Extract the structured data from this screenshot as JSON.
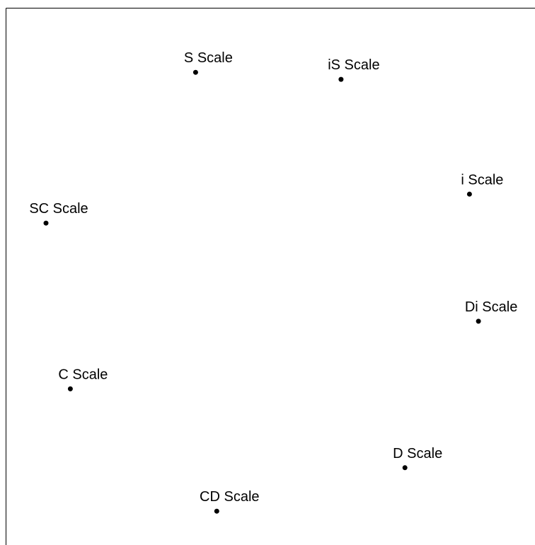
{
  "chart_data": {
    "type": "scatter",
    "title": "",
    "xlabel": "",
    "ylabel": "",
    "grid": false,
    "legend": "none",
    "xlim": [
      0,
      100
    ],
    "ylim": [
      0,
      100
    ],
    "points": [
      {
        "label": "S Scale",
        "x": 35.8,
        "y": 88.1
      },
      {
        "label": "iS Scale",
        "x": 63.3,
        "y": 86.8
      },
      {
        "label": "i Scale",
        "x": 87.6,
        "y": 65.4
      },
      {
        "label": "SC Scale",
        "x": 7.5,
        "y": 60.0
      },
      {
        "label": "Di Scale",
        "x": 89.3,
        "y": 41.7
      },
      {
        "label": "C Scale",
        "x": 12.1,
        "y": 29.1
      },
      {
        "label": "D Scale",
        "x": 75.4,
        "y": 14.4
      },
      {
        "label": "CD Scale",
        "x": 39.8,
        "y": 6.3
      }
    ],
    "colors": {
      "point": "#000000",
      "axis": "#000000",
      "background": "#ffffff"
    }
  }
}
